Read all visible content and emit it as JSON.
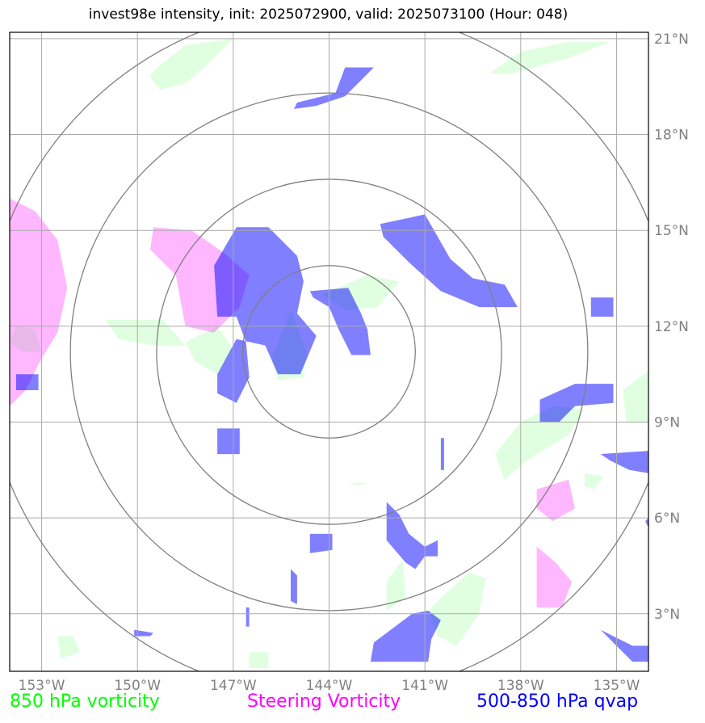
{
  "title": "invest98e intensity, init: 2025072900, valid: 2025073100 (Hour: 048)",
  "map": {
    "lon_range": [
      -154.0,
      -134.0
    ],
    "lat_range": [
      1.2,
      21.2
    ],
    "lon_ticks": [
      -153,
      -150,
      -147,
      -144,
      -141,
      -138,
      -135
    ],
    "lon_tick_labels": [
      "153°W",
      "150°W",
      "147°W",
      "144°W",
      "141°W",
      "138°W",
      "135°W"
    ],
    "lat_ticks": [
      3,
      6,
      9,
      12,
      15,
      18,
      21
    ],
    "lat_tick_labels": [
      "3°N",
      "6°N",
      "9°N",
      "12°N",
      "15°N",
      "18°N",
      "21°N"
    ],
    "gridlines": true,
    "range_rings": {
      "center_lon": -144.0,
      "center_lat": 11.2,
      "radii_deg": [
        2.7,
        5.4,
        8.1,
        10.8
      ]
    },
    "colors": {
      "green": "#00ff00",
      "magenta": "#ff00ff",
      "blue": "#0000ff",
      "grid": "#aaaaaa",
      "ring": "#808080"
    }
  },
  "legend": {
    "green_label": "850 hPa vorticity",
    "magenta_label": "Steering Vorticity",
    "blue_label": "500-850 hPa qvap"
  },
  "fields": {
    "green": [
      [
        [
          -149.5,
          20.0
        ],
        [
          -148.5,
          20.8
        ],
        [
          -147.0,
          21.0
        ],
        [
          -147.8,
          20.2
        ],
        [
          -148.5,
          19.6
        ],
        [
          -149.3,
          19.4
        ],
        [
          -149.6,
          19.8
        ]
      ],
      [
        [
          -139.0,
          19.9
        ],
        [
          -138.0,
          20.6
        ],
        [
          -136.5,
          20.9
        ],
        [
          -135.2,
          20.9
        ],
        [
          -136.5,
          20.4
        ],
        [
          -138.3,
          19.9
        ]
      ],
      [
        [
          -151.0,
          12.2
        ],
        [
          -149.2,
          12.2
        ],
        [
          -148.5,
          11.4
        ],
        [
          -149.5,
          11.4
        ],
        [
          -150.6,
          11.6
        ]
      ],
      [
        [
          -148.5,
          11.5
        ],
        [
          -147.5,
          12.0
        ],
        [
          -147.0,
          11.3
        ],
        [
          -147.5,
          10.5
        ],
        [
          -148.2,
          10.9
        ]
      ],
      [
        [
          -144.2,
          13.0
        ],
        [
          -142.8,
          13.6
        ],
        [
          -141.8,
          13.4
        ],
        [
          -142.5,
          12.6
        ],
        [
          -143.5,
          12.5
        ]
      ],
      [
        [
          -145.8,
          11.0
        ],
        [
          -145.2,
          12.5
        ],
        [
          -144.7,
          11.2
        ],
        [
          -144.8,
          10.4
        ],
        [
          -145.6,
          10.3
        ]
      ],
      [
        [
          -137.0,
          9.5
        ],
        [
          -136.0,
          9.4
        ],
        [
          -136.5,
          8.6
        ],
        [
          -137.8,
          7.8
        ],
        [
          -138.5,
          7.2
        ],
        [
          -138.8,
          8.0
        ],
        [
          -138.0,
          9.0
        ]
      ],
      [
        [
          -134.8,
          10.0
        ],
        [
          -134.0,
          10.6
        ],
        [
          -134.0,
          9.0
        ],
        [
          -134.7,
          9.0
        ]
      ],
      [
        [
          -153.8,
          12.0
        ],
        [
          -153.2,
          11.9
        ],
        [
          -153.0,
          11.2
        ],
        [
          -153.6,
          11.2
        ],
        [
          -154.0,
          11.5
        ]
      ],
      [
        [
          -136.0,
          7.4
        ],
        [
          -135.4,
          7.3
        ],
        [
          -135.7,
          6.9
        ],
        [
          -136.0,
          7.0
        ]
      ],
      [
        [
          -142.2,
          4.0
        ],
        [
          -141.7,
          4.7
        ],
        [
          -141.6,
          3.5
        ],
        [
          -142.2,
          3.1
        ]
      ],
      [
        [
          -140.5,
          3.5
        ],
        [
          -139.6,
          4.3
        ],
        [
          -139.1,
          4.1
        ],
        [
          -139.3,
          3.0
        ],
        [
          -140.0,
          2.0
        ],
        [
          -140.6,
          2.3
        ],
        [
          -140.9,
          3.1
        ]
      ],
      [
        [
          -152.5,
          2.3
        ],
        [
          -152.0,
          2.3
        ],
        [
          -151.8,
          1.8
        ],
        [
          -152.4,
          1.6
        ]
      ],
      [
        [
          -146.5,
          1.8
        ],
        [
          -145.9,
          1.8
        ],
        [
          -145.9,
          1.3
        ],
        [
          -146.5,
          1.3
        ]
      ],
      [
        [
          -143.4,
          7.1
        ],
        [
          -142.8,
          7.1
        ],
        [
          -143.1,
          7.0
        ]
      ]
    ],
    "magenta": [
      [
        [
          -154.0,
          16.0
        ],
        [
          -153.2,
          15.6
        ],
        [
          -152.5,
          14.7
        ],
        [
          -152.2,
          13.2
        ],
        [
          -152.5,
          11.8
        ],
        [
          -153.0,
          11.0
        ],
        [
          -153.5,
          10.0
        ],
        [
          -154.0,
          9.5
        ]
      ],
      [
        [
          -149.5,
          15.1
        ],
        [
          -148.3,
          15.0
        ],
        [
          -147.3,
          14.3
        ],
        [
          -146.5,
          13.6
        ],
        [
          -146.8,
          12.6
        ],
        [
          -147.6,
          11.8
        ],
        [
          -148.5,
          12.0
        ],
        [
          -148.8,
          13.6
        ],
        [
          -149.6,
          14.4
        ]
      ],
      [
        [
          -137.5,
          6.9
        ],
        [
          -136.5,
          7.2
        ],
        [
          -136.3,
          6.3
        ],
        [
          -137.0,
          5.9
        ],
        [
          -137.5,
          6.3
        ]
      ],
      [
        [
          -137.5,
          5.1
        ],
        [
          -136.9,
          4.6
        ],
        [
          -136.4,
          4.0
        ],
        [
          -136.7,
          3.2
        ],
        [
          -137.5,
          3.2
        ]
      ]
    ],
    "blue": [
      [
        [
          -145.0,
          19.0
        ],
        [
          -143.8,
          19.3
        ],
        [
          -143.5,
          20.1
        ],
        [
          -142.6,
          20.1
        ],
        [
          -143.5,
          19.2
        ],
        [
          -144.4,
          18.9
        ],
        [
          -145.1,
          18.8
        ]
      ],
      [
        [
          -146.9,
          15.1
        ],
        [
          -145.9,
          15.1
        ],
        [
          -145.0,
          14.2
        ],
        [
          -144.8,
          13.4
        ],
        [
          -145.0,
          12.4
        ],
        [
          -144.4,
          11.7
        ],
        [
          -144.9,
          10.5
        ],
        [
          -145.6,
          10.5
        ],
        [
          -146.0,
          11.4
        ],
        [
          -146.9,
          11.6
        ],
        [
          -147.5,
          10.5
        ],
        [
          -147.5,
          9.9
        ],
        [
          -146.9,
          9.6
        ],
        [
          -146.5,
          10.4
        ],
        [
          -146.6,
          11.5
        ],
        [
          -146.9,
          12.3
        ],
        [
          -147.5,
          12.3
        ],
        [
          -147.6,
          13.9
        ]
      ],
      [
        [
          -144.6,
          13.1
        ],
        [
          -143.4,
          13.2
        ],
        [
          -143.0,
          12.4
        ],
        [
          -142.8,
          11.9
        ],
        [
          -142.7,
          11.1
        ],
        [
          -143.3,
          11.1
        ],
        [
          -143.7,
          11.9
        ],
        [
          -144.0,
          12.6
        ],
        [
          -144.5,
          12.9
        ]
      ],
      [
        [
          -142.4,
          15.2
        ],
        [
          -141.0,
          15.5
        ],
        [
          -140.6,
          14.8
        ],
        [
          -140.2,
          14.1
        ],
        [
          -139.5,
          13.5
        ],
        [
          -138.5,
          13.3
        ],
        [
          -138.1,
          12.6
        ],
        [
          -139.3,
          12.6
        ],
        [
          -140.5,
          13.1
        ],
        [
          -141.5,
          14.0
        ],
        [
          -142.3,
          14.8
        ]
      ],
      [
        [
          -135.8,
          12.9
        ],
        [
          -135.1,
          12.9
        ],
        [
          -135.1,
          12.3
        ],
        [
          -135.8,
          12.3
        ]
      ],
      [
        [
          -153.8,
          10.5
        ],
        [
          -153.1,
          10.5
        ],
        [
          -153.1,
          10.0
        ],
        [
          -153.8,
          10.0
        ]
      ],
      [
        [
          -137.4,
          9.7
        ],
        [
          -136.3,
          10.2
        ],
        [
          -135.1,
          10.2
        ],
        [
          -135.1,
          9.6
        ],
        [
          -136.3,
          9.5
        ],
        [
          -136.8,
          9.0
        ],
        [
          -137.4,
          9.0
        ]
      ],
      [
        [
          -147.5,
          8.8
        ],
        [
          -146.8,
          8.8
        ],
        [
          -146.8,
          8.0
        ],
        [
          -147.5,
          8.0
        ]
      ],
      [
        [
          -135.5,
          8.0
        ],
        [
          -134.0,
          8.1
        ],
        [
          -134.0,
          7.4
        ],
        [
          -134.6,
          7.5
        ],
        [
          -135.2,
          7.8
        ]
      ],
      [
        [
          -140.5,
          8.5
        ],
        [
          -140.4,
          8.5
        ],
        [
          -140.4,
          7.5
        ],
        [
          -140.5,
          7.5
        ]
      ],
      [
        [
          -142.2,
          6.5
        ],
        [
          -141.8,
          6.1
        ],
        [
          -141.5,
          5.5
        ],
        [
          -141.0,
          5.1
        ],
        [
          -140.6,
          5.3
        ],
        [
          -140.6,
          4.8
        ],
        [
          -141.0,
          4.8
        ],
        [
          -141.3,
          4.4
        ],
        [
          -141.6,
          4.6
        ],
        [
          -142.2,
          5.3
        ]
      ],
      [
        [
          -144.6,
          5.5
        ],
        [
          -143.9,
          5.5
        ],
        [
          -143.9,
          5.0
        ],
        [
          -144.6,
          4.9
        ]
      ],
      [
        [
          -145.2,
          4.4
        ],
        [
          -145.0,
          4.2
        ],
        [
          -145.0,
          3.3
        ],
        [
          -145.2,
          3.4
        ]
      ],
      [
        [
          -146.6,
          3.2
        ],
        [
          -146.5,
          3.2
        ],
        [
          -146.5,
          2.6
        ],
        [
          -146.6,
          2.6
        ]
      ],
      [
        [
          -150.1,
          2.5
        ],
        [
          -149.5,
          2.4
        ],
        [
          -149.6,
          2.3
        ],
        [
          -150.1,
          2.3
        ]
      ],
      [
        [
          -142.7,
          1.5
        ],
        [
          -142.6,
          2.1
        ],
        [
          -141.4,
          3.0
        ],
        [
          -140.9,
          3.1
        ],
        [
          -140.5,
          2.8
        ],
        [
          -140.8,
          2.2
        ],
        [
          -140.9,
          1.5
        ]
      ],
      [
        [
          -135.5,
          2.5
        ],
        [
          -134.5,
          2.0
        ],
        [
          -134.0,
          2.0
        ],
        [
          -134.0,
          1.5
        ],
        [
          -134.5,
          1.5
        ],
        [
          -135.0,
          2.0
        ]
      ],
      [
        [
          -134.1,
          5.9
        ],
        [
          -134.0,
          6.0
        ],
        [
          -134.0,
          5.7
        ]
      ]
    ]
  }
}
